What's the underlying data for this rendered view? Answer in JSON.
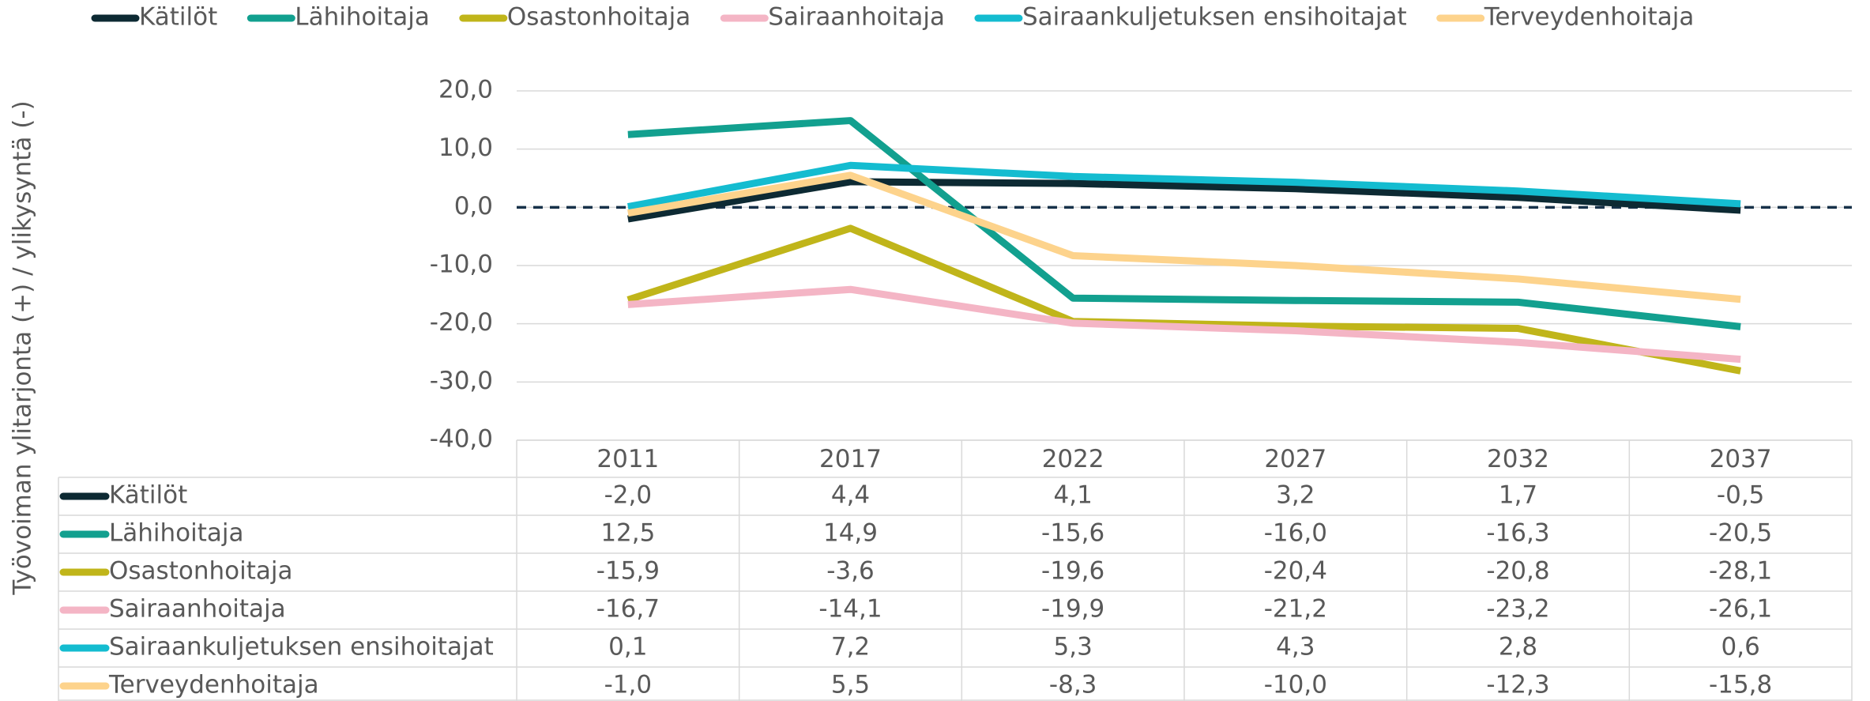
{
  "chart_data": {
    "type": "line",
    "y_axis_label": "Työvoiman ylitarjonta (+) / ylikysyntä (-)",
    "categories": [
      "2011",
      "2017",
      "2022",
      "2027",
      "2032",
      "2037"
    ],
    "series": [
      {
        "name": "Kätilöt",
        "color": "#0d2a33",
        "values": [
          -2.0,
          4.4,
          4.1,
          3.2,
          1.7,
          -0.5
        ],
        "value_labels": [
          "-2,0",
          "4,4",
          "4,1",
          "3,2",
          "1,7",
          "-0,5"
        ]
      },
      {
        "name": "Lähihoitaja",
        "color": "#12a08f",
        "values": [
          12.5,
          14.9,
          -15.6,
          -16.0,
          -16.3,
          -20.5
        ],
        "value_labels": [
          "12,5",
          "14,9",
          "-15,6",
          "-16,0",
          "-16,3",
          "-20,5"
        ]
      },
      {
        "name": "Osastonhoitaja",
        "color": "#c0b51a",
        "values": [
          -15.9,
          -3.6,
          -19.6,
          -20.4,
          -20.8,
          -28.1
        ],
        "value_labels": [
          "-15,9",
          "-3,6",
          "-19,6",
          "-20,4",
          "-20,8",
          "-28,1"
        ]
      },
      {
        "name": "Sairaanhoitaja",
        "color": "#f4b5c5",
        "values": [
          -16.7,
          -14.1,
          -19.9,
          -21.2,
          -23.2,
          -26.1
        ],
        "value_labels": [
          "-16,7",
          "-14,1",
          "-19,9",
          "-21,2",
          "-23,2",
          "-26,1"
        ]
      },
      {
        "name": "Sairaankuljetuksen ensihoitajat",
        "color": "#14bcd0",
        "values": [
          0.1,
          7.2,
          5.3,
          4.3,
          2.8,
          0.6
        ],
        "value_labels": [
          "0,1",
          "7,2",
          "5,3",
          "4,3",
          "2,8",
          "0,6"
        ]
      },
      {
        "name": "Terveydenhoitaja",
        "color": "#fdd38c",
        "values": [
          -1.0,
          5.5,
          -8.3,
          -10.0,
          -12.3,
          -15.8
        ],
        "value_labels": [
          "-1,0",
          "5,5",
          "-8,3",
          "-10,0",
          "-12,3",
          "-15,8"
        ]
      }
    ],
    "ylim": [
      -40,
      20
    ],
    "yticks": [
      {
        "value": -40,
        "label": "-40,0"
      },
      {
        "value": -30,
        "label": "-30,0"
      },
      {
        "value": -20,
        "label": "-20,0"
      },
      {
        "value": -10,
        "label": "-10,0"
      },
      {
        "value": 0,
        "label": "0,0"
      },
      {
        "value": 10,
        "label": "10,0"
      },
      {
        "value": 20,
        "label": "20,0"
      }
    ],
    "grid": true,
    "zero_line": true,
    "legend": "top",
    "data_table": true
  }
}
